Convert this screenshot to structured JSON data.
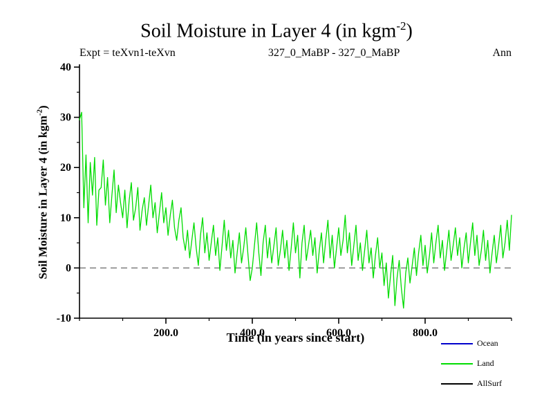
{
  "header": {
    "title_main": "Soil Moisture in Layer 4 (in kgm",
    "title_sup": "-2",
    "title_close": ")",
    "expt": "Expt = teXvn1-teXvn",
    "period": "327_0_MaBP - 327_0_MaBP",
    "mean": "Ann"
  },
  "chart_data": {
    "type": "line",
    "title": "Soil Moisture in Layer 4 (in kgm-2)",
    "subtitle_left": "Expt = teXvn1-teXvn",
    "subtitle_center": "327_0_MaBP - 327_0_MaBP",
    "subtitle_right": "Ann",
    "xlabel": "Time (in years since start)",
    "ylabel_main": "Soil Moisture in Layer 4 (in kgm",
    "ylabel_sup": "-2",
    "ylabel_close": ")",
    "xlim": [
      0,
      1000
    ],
    "ylim": [
      -10,
      40
    ],
    "xticks": [
      200,
      400,
      600,
      800
    ],
    "xtick_labels": [
      "200.0",
      "400.0",
      "600.0",
      "800.0"
    ],
    "yticks": [
      -10,
      0,
      10,
      20,
      30,
      40
    ],
    "ytick_labels": [
      "-10",
      "0",
      "10",
      "20",
      "30",
      "40"
    ],
    "x_minor_step": 100,
    "y_minor_step": 5,
    "grid": false,
    "zero_line": {
      "y": 0,
      "style": "dashed",
      "color": "#444444"
    },
    "axis_color": "#000000",
    "legend_position": "bottom-right",
    "series": [
      {
        "name": "Ocean",
        "color": "#0000cc",
        "x_start": 0,
        "x_step": 5,
        "values": []
      },
      {
        "name": "Land",
        "color": "#00dc00",
        "x_start": 0,
        "x_step": 5,
        "values": [
          29.5,
          31.0,
          12.0,
          22.5,
          9.0,
          21.0,
          14.5,
          22.0,
          8.5,
          15.5,
          16.0,
          21.5,
          12.5,
          18.0,
          9.0,
          14.5,
          19.5,
          11.0,
          16.5,
          13.0,
          10.0,
          15.5,
          8.0,
          13.5,
          17.0,
          9.5,
          12.0,
          16.0,
          7.5,
          11.5,
          14.0,
          8.5,
          12.5,
          16.5,
          10.0,
          13.0,
          7.0,
          11.0,
          15.0,
          9.0,
          12.0,
          6.5,
          10.5,
          13.5,
          8.0,
          5.5,
          9.5,
          12.0,
          6.0,
          3.5,
          7.5,
          2.0,
          5.5,
          9.0,
          4.0,
          0.5,
          6.5,
          10.0,
          3.0,
          7.0,
          1.5,
          5.0,
          8.5,
          2.5,
          6.0,
          -0.5,
          4.5,
          9.5,
          3.5,
          7.5,
          2.0,
          5.5,
          -1.0,
          3.0,
          7.0,
          1.0,
          4.0,
          8.0,
          2.5,
          -2.5,
          0.0,
          4.5,
          9.0,
          3.0,
          -1.5,
          5.0,
          8.5,
          2.0,
          6.0,
          1.0,
          4.5,
          8.0,
          0.5,
          3.5,
          7.5,
          2.0,
          5.5,
          -0.5,
          4.0,
          9.0,
          3.0,
          6.5,
          -2.0,
          5.0,
          8.5,
          1.5,
          4.5,
          7.5,
          2.5,
          6.0,
          -1.0,
          3.5,
          7.0,
          1.0,
          5.5,
          9.5,
          2.0,
          6.5,
          0.0,
          4.0,
          8.0,
          2.5,
          5.5,
          10.5,
          3.0,
          7.0,
          0.5,
          4.5,
          8.5,
          1.5,
          5.0,
          -0.5,
          3.5,
          7.5,
          1.0,
          4.0,
          -2.0,
          2.5,
          6.0,
          0.0,
          3.0,
          -3.5,
          1.0,
          -6.0,
          -1.5,
          2.5,
          -7.5,
          -2.0,
          1.5,
          -4.0,
          -8.0,
          -1.0,
          2.0,
          -3.0,
          0.5,
          4.0,
          -1.5,
          3.0,
          6.5,
          0.5,
          4.5,
          -1.0,
          2.5,
          7.0,
          1.0,
          5.0,
          8.5,
          2.0,
          5.5,
          -0.5,
          3.5,
          7.5,
          1.5,
          4.5,
          8.0,
          2.5,
          6.0,
          0.0,
          4.0,
          7.0,
          1.0,
          5.0,
          9.0,
          2.5,
          6.5,
          0.5,
          3.5,
          7.5,
          1.5,
          5.5,
          -1.0,
          3.0,
          6.5,
          1.0,
          4.5,
          8.5,
          2.0,
          5.0,
          9.5,
          3.5,
          10.5
        ]
      },
      {
        "name": "AllSurf",
        "color": "#000000",
        "x_start": 0,
        "x_step": 5,
        "values": []
      }
    ],
    "legend": [
      {
        "label": "Ocean",
        "color": "#0000cc"
      },
      {
        "label": "Land",
        "color": "#00dc00"
      },
      {
        "label": "AllSurf",
        "color": "#000000"
      }
    ]
  }
}
